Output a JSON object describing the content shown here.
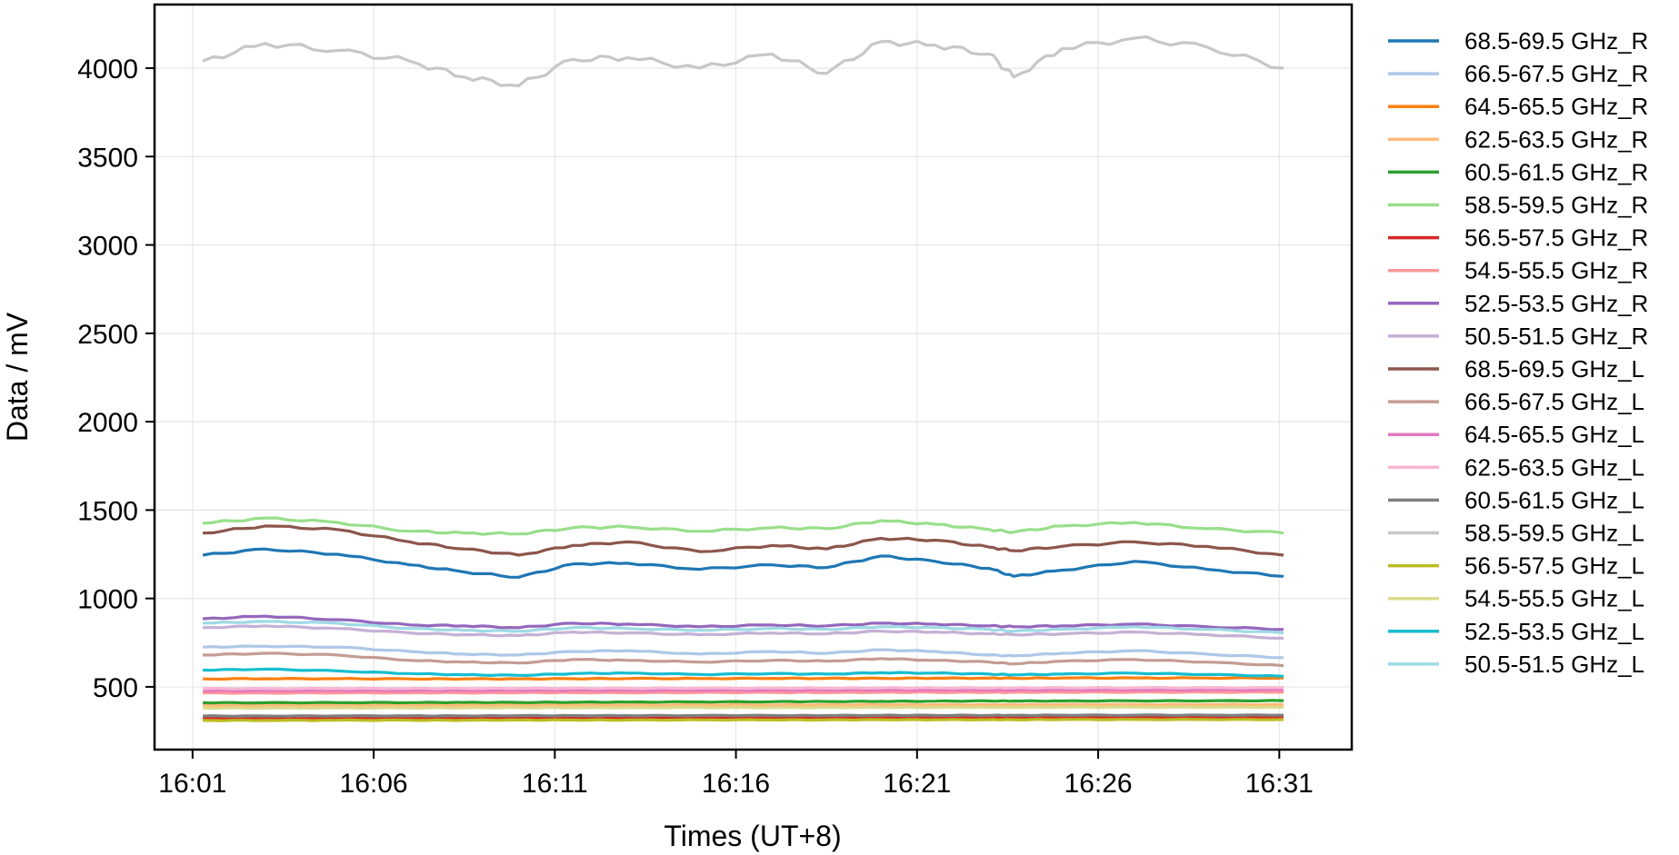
{
  "chart_data": {
    "type": "line",
    "title": "",
    "xlabel": "Times (UT+8)",
    "ylabel": "Data / mV",
    "x_ticks": [
      "16:01",
      "16:06",
      "16:11",
      "16:16",
      "16:21",
      "16:26",
      "16:31"
    ],
    "x_tick_minutes": [
      0,
      5,
      10,
      15,
      20,
      25,
      30
    ],
    "y_ticks": [
      500,
      1000,
      1500,
      2000,
      2500,
      3000,
      3500,
      4000
    ],
    "xlim_minutes": [
      -1.05,
      32.0
    ],
    "x_range_note": "series span 16:01:17 to 16:31:07",
    "ylim": [
      145,
      4360
    ],
    "grid": true,
    "legend_placement": "outside-right",
    "x": [
      "16:01:17",
      "16:03:00",
      "16:05:00",
      "16:07:00",
      "16:08:30",
      "16:10:00",
      "16:11:30",
      "16:13:00",
      "16:15:00",
      "16:17:00",
      "16:18:30",
      "16:20:00",
      "16:21:30",
      "16:23:00",
      "16:23:40",
      "16:25:00",
      "16:27:00",
      "16:29:00",
      "16:31:07"
    ],
    "series": [
      {
        "name": "68.5-69.5 GHz_R",
        "color": "#1f77b4",
        "values": [
          1245,
          1280,
          1250,
          1190,
          1150,
          1120,
          1195,
          1200,
          1165,
          1190,
          1175,
          1240,
          1210,
          1170,
          1125,
          1160,
          1210,
          1165,
          1125
        ]
      },
      {
        "name": "66.5-67.5 GHz_R",
        "color": "#aec7e8",
        "values": [
          725,
          730,
          725,
          700,
          685,
          680,
          700,
          705,
          685,
          700,
          690,
          710,
          700,
          680,
          675,
          690,
          705,
          685,
          665
        ]
      },
      {
        "name": "64.5-65.5 GHz_R",
        "color": "#ff7f0e",
        "values": [
          545,
          546,
          546,
          545,
          545,
          545,
          546,
          547,
          547,
          548,
          548,
          548,
          549,
          549,
          549,
          550,
          550,
          550,
          550
        ]
      },
      {
        "name": "62.5-63.5 GHz_R",
        "color": "#ffbb78",
        "values": [
          395,
          395,
          396,
          396,
          396,
          397,
          397,
          397,
          398,
          398,
          398,
          399,
          399,
          399,
          399,
          400,
          400,
          400,
          400
        ]
      },
      {
        "name": "60.5-61.5 GHz_R",
        "color": "#2ca02c",
        "values": [
          410,
          410,
          411,
          411,
          412,
          412,
          413,
          414,
          415,
          416,
          417,
          418,
          419,
          420,
          420,
          420,
          421,
          421,
          422
        ]
      },
      {
        "name": "58.5-59.5 GHz_R",
        "color": "#98df8a",
        "values": [
          1425,
          1455,
          1430,
          1380,
          1370,
          1365,
          1400,
          1405,
          1380,
          1400,
          1395,
          1440,
          1420,
          1390,
          1375,
          1410,
          1430,
          1395,
          1370
        ]
      },
      {
        "name": "56.5-57.5 GHz_R",
        "color": "#d62728",
        "values": [
          320,
          320,
          321,
          321,
          321,
          322,
          322,
          322,
          323,
          323,
          323,
          324,
          324,
          324,
          324,
          325,
          325,
          325,
          325
        ]
      },
      {
        "name": "54.5-55.5 GHz_R",
        "color": "#ff9896",
        "values": [
          465,
          465,
          466,
          466,
          466,
          467,
          467,
          467,
          468,
          468,
          468,
          469,
          469,
          469,
          469,
          470,
          470,
          470,
          470
        ]
      },
      {
        "name": "52.5-53.5 GHz_R",
        "color": "#9467bd",
        "values": [
          885,
          900,
          880,
          850,
          845,
          835,
          860,
          855,
          840,
          850,
          845,
          860,
          855,
          845,
          840,
          845,
          855,
          840,
          825
        ]
      },
      {
        "name": "50.5-51.5 GHz_R",
        "color": "#c5b0d5",
        "values": [
          835,
          845,
          830,
          805,
          795,
          790,
          810,
          805,
          795,
          805,
          800,
          815,
          810,
          800,
          795,
          800,
          810,
          795,
          775
        ]
      },
      {
        "name": "68.5-69.5 GHz_L",
        "color": "#8c564b",
        "values": [
          1370,
          1410,
          1390,
          1320,
          1280,
          1245,
          1300,
          1320,
          1265,
          1300,
          1280,
          1340,
          1330,
          1290,
          1270,
          1295,
          1320,
          1295,
          1245
        ]
      },
      {
        "name": "66.5-67.5 GHz_L",
        "color": "#c49c94",
        "values": [
          680,
          690,
          680,
          650,
          640,
          635,
          655,
          650,
          640,
          650,
          645,
          660,
          650,
          640,
          630,
          645,
          655,
          640,
          620
        ]
      },
      {
        "name": "64.5-65.5 GHz_L",
        "color": "#e377c2",
        "values": [
          478,
          478,
          479,
          479,
          479,
          480,
          480,
          480,
          481,
          481,
          481,
          482,
          482,
          482,
          482,
          483,
          483,
          483,
          483
        ]
      },
      {
        "name": "62.5-63.5 GHz_L",
        "color": "#f7b6d2",
        "values": [
          490,
          490,
          491,
          491,
          491,
          492,
          492,
          492,
          493,
          493,
          493,
          494,
          494,
          494,
          494,
          495,
          495,
          495,
          495
        ]
      },
      {
        "name": "60.5-61.5 GHz_L",
        "color": "#7f7f7f",
        "values": [
          335,
          335,
          336,
          336,
          336,
          337,
          337,
          337,
          338,
          338,
          338,
          339,
          339,
          339,
          339,
          340,
          340,
          340,
          340
        ]
      },
      {
        "name": "58.5-59.5 GHz_L",
        "color": "#c7c7c7",
        "values": [
          4040,
          4140,
          4100,
          4040,
          3950,
          3900,
          4050,
          4060,
          4000,
          4080,
          3970,
          4150,
          4130,
          4080,
          3950,
          4110,
          4170,
          4120,
          4000
        ]
      },
      {
        "name": "56.5-57.5 GHz_L",
        "color": "#bcbd22",
        "values": [
          310,
          310,
          311,
          311,
          311,
          312,
          312,
          312,
          313,
          313,
          313,
          314,
          314,
          314,
          314,
          315,
          315,
          315,
          315
        ]
      },
      {
        "name": "54.5-55.5 GHz_L",
        "color": "#dbdb8d",
        "values": [
          380,
          380,
          381,
          381,
          381,
          382,
          382,
          382,
          383,
          383,
          383,
          384,
          384,
          384,
          384,
          385,
          385,
          385,
          385
        ]
      },
      {
        "name": "52.5-53.5 GHz_L",
        "color": "#17becf",
        "values": [
          595,
          600,
          590,
          575,
          568,
          565,
          575,
          578,
          570,
          575,
          572,
          580,
          578,
          572,
          568,
          572,
          578,
          570,
          560
        ]
      },
      {
        "name": "50.5-51.5 GHz_L",
        "color": "#9edae5",
        "values": [
          860,
          870,
          860,
          830,
          820,
          815,
          835,
          830,
          820,
          830,
          825,
          840,
          835,
          825,
          815,
          825,
          840,
          825,
          805
        ]
      }
    ]
  }
}
